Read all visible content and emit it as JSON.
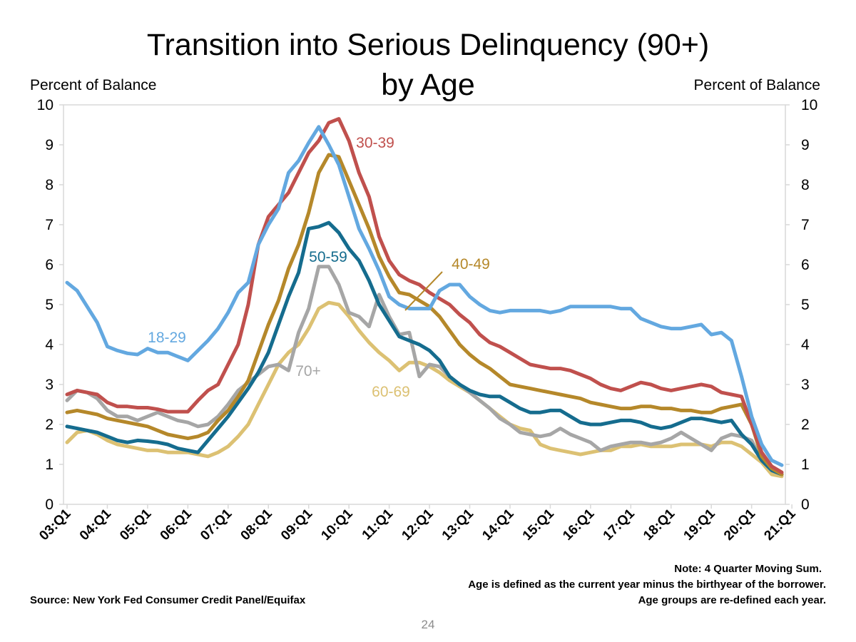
{
  "chart_data": {
    "type": "line",
    "title": "Transition into Serious Delinquency (90+) by Age",
    "title_lines": [
      "Transition into Serious Delinquency (90+)",
      "by Age"
    ],
    "ylabel_left": "Percent of Balance",
    "ylabel_right": "Percent of Balance",
    "xlabel": "",
    "ylim": [
      0,
      10
    ],
    "yticks": [
      "0",
      "1",
      "2",
      "3",
      "4",
      "5",
      "6",
      "7",
      "8",
      "9",
      "10"
    ],
    "xticks": [
      "03:Q1",
      "04:Q1",
      "05:Q1",
      "06:Q1",
      "07:Q1",
      "08:Q1",
      "09:Q1",
      "10:Q1",
      "11:Q1",
      "12:Q1",
      "13:Q1",
      "14:Q1",
      "15:Q1",
      "16:Q1",
      "17:Q1",
      "18:Q1",
      "19:Q1",
      "20:Q1",
      "21:Q1"
    ],
    "x_start_year": 2003,
    "series": [
      {
        "name": "18-29",
        "color": "#63a8e0",
        "label": "18-29",
        "values": [
          5.55,
          5.35,
          4.95,
          4.55,
          3.95,
          3.85,
          3.78,
          3.75,
          3.9,
          3.8,
          3.8,
          3.7,
          3.6,
          3.85,
          4.1,
          4.4,
          4.8,
          5.3,
          5.55,
          6.5,
          7.0,
          7.4,
          8.3,
          8.6,
          9.05,
          9.45,
          9.0,
          8.5,
          7.7,
          6.9,
          6.4,
          5.85,
          5.2,
          5.0,
          4.9,
          4.9,
          4.9,
          5.35,
          5.5,
          5.5,
          5.2,
          5.0,
          4.85,
          4.8,
          4.85,
          4.85,
          4.85,
          4.85,
          4.8,
          4.85,
          4.95,
          4.95,
          4.95,
          4.95,
          4.95,
          4.9,
          4.9,
          4.65,
          4.55,
          4.45,
          4.4,
          4.4,
          4.45,
          4.5,
          4.25,
          4.3,
          4.1,
          3.2,
          2.2,
          1.5,
          1.1,
          0.98
        ]
      },
      {
        "name": "30-39",
        "color": "#c0504d",
        "label": "30-39",
        "values": [
          2.75,
          2.85,
          2.8,
          2.75,
          2.55,
          2.45,
          2.45,
          2.42,
          2.42,
          2.38,
          2.32,
          2.32,
          2.32,
          2.6,
          2.85,
          3.0,
          3.5,
          4.0,
          5.0,
          6.5,
          7.2,
          7.5,
          7.8,
          8.3,
          8.8,
          9.1,
          9.55,
          9.65,
          9.1,
          8.3,
          7.7,
          6.7,
          6.1,
          5.75,
          5.6,
          5.5,
          5.3,
          5.15,
          5.0,
          4.75,
          4.55,
          4.25,
          4.05,
          3.95,
          3.8,
          3.65,
          3.5,
          3.45,
          3.4,
          3.4,
          3.35,
          3.25,
          3.15,
          3.0,
          2.9,
          2.85,
          2.95,
          3.05,
          3.0,
          2.9,
          2.85,
          2.9,
          2.95,
          3.0,
          2.95,
          2.8,
          2.75,
          2.7,
          2.0,
          1.3,
          0.95,
          0.8
        ]
      },
      {
        "name": "40-49",
        "color": "#b5882a",
        "label": "40-49",
        "values": [
          2.3,
          2.35,
          2.3,
          2.25,
          2.15,
          2.1,
          2.05,
          2.0,
          1.95,
          1.85,
          1.75,
          1.7,
          1.65,
          1.7,
          1.8,
          2.1,
          2.35,
          2.7,
          3.1,
          3.8,
          4.5,
          5.1,
          5.9,
          6.5,
          7.3,
          8.3,
          8.75,
          8.7,
          8.1,
          7.5,
          6.9,
          6.2,
          5.7,
          5.3,
          5.25,
          5.1,
          4.95,
          4.7,
          4.35,
          4.0,
          3.75,
          3.55,
          3.4,
          3.2,
          3.0,
          2.95,
          2.9,
          2.85,
          2.8,
          2.75,
          2.7,
          2.65,
          2.55,
          2.5,
          2.45,
          2.4,
          2.4,
          2.45,
          2.45,
          2.4,
          2.4,
          2.35,
          2.35,
          2.3,
          2.3,
          2.4,
          2.45,
          2.5,
          2.0,
          1.2,
          0.9,
          0.75
        ]
      },
      {
        "name": "50-59",
        "color": "#156c8e",
        "label": "50-59",
        "values": [
          1.95,
          1.9,
          1.85,
          1.8,
          1.7,
          1.6,
          1.55,
          1.6,
          1.58,
          1.55,
          1.5,
          1.4,
          1.35,
          1.3,
          1.6,
          1.9,
          2.2,
          2.55,
          2.9,
          3.3,
          3.8,
          4.5,
          5.2,
          5.8,
          6.9,
          6.95,
          7.05,
          6.8,
          6.4,
          6.1,
          5.6,
          5.0,
          4.6,
          4.2,
          4.1,
          4.0,
          3.85,
          3.6,
          3.2,
          3.0,
          2.85,
          2.75,
          2.7,
          2.7,
          2.55,
          2.4,
          2.3,
          2.3,
          2.35,
          2.35,
          2.2,
          2.05,
          2.0,
          2.0,
          2.05,
          2.1,
          2.1,
          2.05,
          1.95,
          1.9,
          1.95,
          2.05,
          2.15,
          2.15,
          2.1,
          2.05,
          2.1,
          1.75,
          1.5,
          1.1,
          0.85,
          0.75
        ]
      },
      {
        "name": "60-69",
        "color": "#dcc173",
        "label": "60-69",
        "values": [
          1.55,
          1.8,
          1.85,
          1.75,
          1.6,
          1.5,
          1.45,
          1.4,
          1.35,
          1.35,
          1.3,
          1.3,
          1.3,
          1.25,
          1.2,
          1.3,
          1.45,
          1.7,
          2.0,
          2.5,
          3.0,
          3.5,
          3.8,
          4.0,
          4.4,
          4.9,
          5.05,
          5.0,
          4.7,
          4.35,
          4.05,
          3.8,
          3.6,
          3.35,
          3.55,
          3.55,
          3.45,
          3.3,
          3.1,
          2.95,
          2.8,
          2.6,
          2.4,
          2.2,
          2.0,
          1.9,
          1.85,
          1.5,
          1.4,
          1.35,
          1.3,
          1.25,
          1.3,
          1.35,
          1.35,
          1.45,
          1.45,
          1.5,
          1.45,
          1.45,
          1.45,
          1.5,
          1.5,
          1.5,
          1.45,
          1.55,
          1.55,
          1.45,
          1.25,
          1.05,
          0.75,
          0.7
        ]
      },
      {
        "name": "70+",
        "color": "#a6a6a6",
        "label": "70+",
        "values": [
          2.6,
          2.85,
          2.8,
          2.65,
          2.35,
          2.2,
          2.2,
          2.1,
          2.2,
          2.3,
          2.2,
          2.1,
          2.05,
          1.95,
          2.0,
          2.2,
          2.5,
          2.85,
          3.05,
          3.25,
          3.45,
          3.5,
          3.35,
          4.3,
          4.9,
          5.95,
          5.95,
          5.5,
          4.8,
          4.7,
          4.45,
          5.25,
          4.7,
          4.25,
          4.3,
          3.2,
          3.5,
          3.45,
          3.2,
          3.0,
          2.8,
          2.6,
          2.4,
          2.15,
          2.0,
          1.8,
          1.75,
          1.7,
          1.75,
          1.9,
          1.75,
          1.65,
          1.55,
          1.35,
          1.45,
          1.5,
          1.55,
          1.55,
          1.5,
          1.55,
          1.65,
          1.8,
          1.65,
          1.5,
          1.35,
          1.65,
          1.75,
          1.7,
          1.6,
          1.1,
          0.85,
          0.75
        ]
      }
    ]
  },
  "notes": {
    "line1": "Note: 4 Quarter Moving Sum.",
    "line2": "Age is defined as the current year minus the birthyear of the borrower.",
    "line3": "Age groups are re-defined each year."
  },
  "source": "Source: New York Fed Consumer Credit Panel/Equifax",
  "page_number": "24"
}
